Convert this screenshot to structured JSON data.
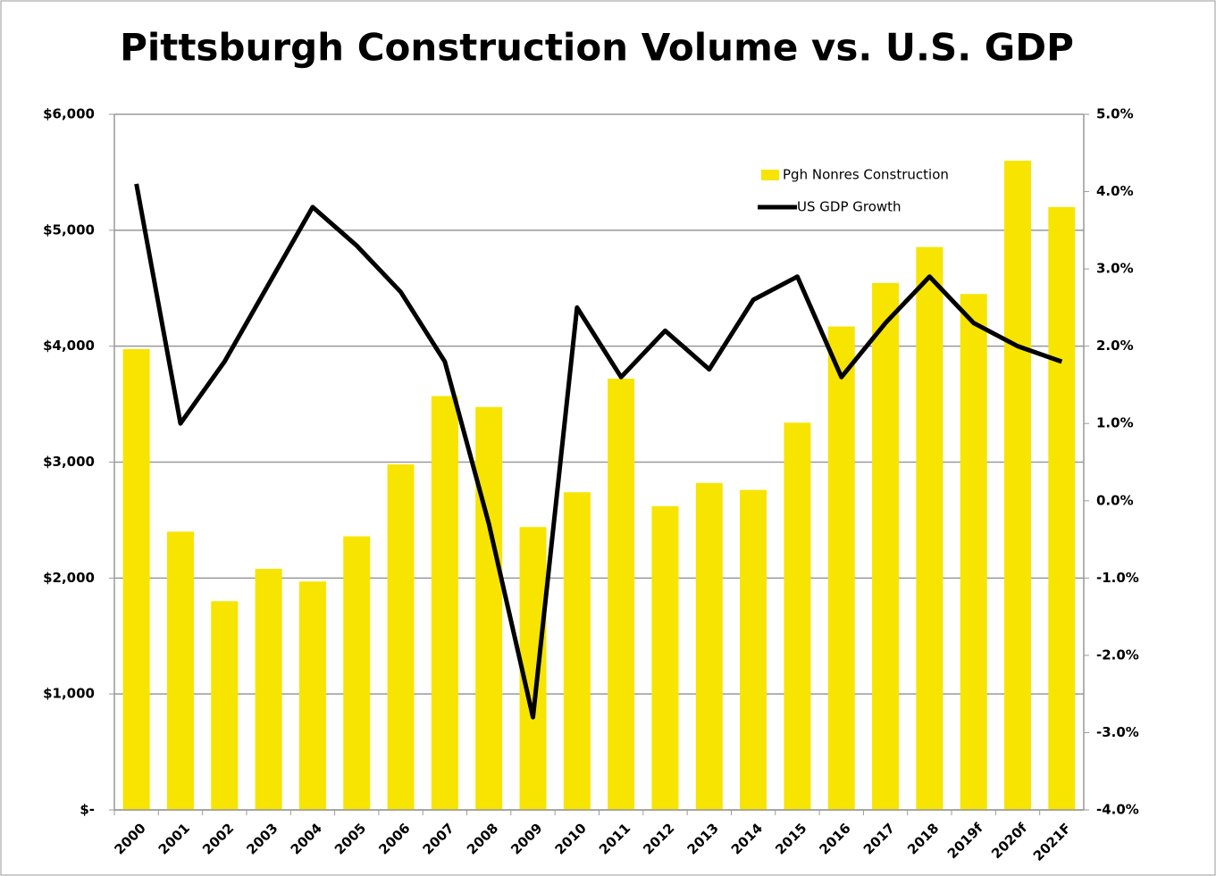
{
  "chart_data": {
    "type": "bar_line",
    "title": "Pittsburgh Construction Volume vs. U.S. GDP",
    "categories": [
      "2000",
      "2001",
      "2002",
      "2003",
      "2004",
      "2005",
      "2006",
      "2007",
      "2008",
      "2009",
      "2010",
      "2011",
      "2012",
      "2013",
      "2014",
      "2015",
      "2016",
      "2017",
      "2018",
      "2019f",
      "2020f",
      "2021F"
    ],
    "series": [
      {
        "name": "Pgh Nonres Construction",
        "type": "bar",
        "color": "#f7e400",
        "axis": "y",
        "values": [
          3975,
          2400,
          1800,
          2080,
          1970,
          2360,
          2980,
          3570,
          3475,
          2440,
          2740,
          3720,
          2620,
          2820,
          2760,
          3340,
          4170,
          4545,
          4855,
          4450,
          5600,
          5200
        ]
      },
      {
        "name": "US GDP Growth",
        "type": "line",
        "color": "#000000",
        "axis": "y2",
        "values": [
          4.1,
          1.0,
          1.8,
          2.8,
          3.8,
          3.3,
          2.7,
          1.8,
          -0.3,
          -2.8,
          2.5,
          1.6,
          2.2,
          1.7,
          2.6,
          2.9,
          1.6,
          2.3,
          2.9,
          2.3,
          2.0,
          1.8
        ]
      }
    ],
    "ylim": [
      0,
      6000
    ],
    "yticks": [
      {
        "value": 0,
        "label": "$-"
      },
      {
        "value": 1000,
        "label": "$1,000"
      },
      {
        "value": 2000,
        "label": "$2,000"
      },
      {
        "value": 3000,
        "label": "$3,000"
      },
      {
        "value": 4000,
        "label": "$4,000"
      },
      {
        "value": 5000,
        "label": "$5,000"
      },
      {
        "value": 6000,
        "label": "$6,000"
      }
    ],
    "y2lim": [
      -4,
      5
    ],
    "y2ticks": [
      {
        "value": -4,
        "label": "-4.0%"
      },
      {
        "value": -3,
        "label": "-3.0%"
      },
      {
        "value": -2,
        "label": "-2.0%"
      },
      {
        "value": -1,
        "label": "-1.0%"
      },
      {
        "value": 0,
        "label": "0.0%"
      },
      {
        "value": 1,
        "label": "1.0%"
      },
      {
        "value": 2,
        "label": "2.0%"
      },
      {
        "value": 3,
        "label": "3.0%"
      },
      {
        "value": 4,
        "label": "4.0%"
      },
      {
        "value": 5,
        "label": "5.0%"
      }
    ],
    "grid": true,
    "legend": "top-right"
  }
}
